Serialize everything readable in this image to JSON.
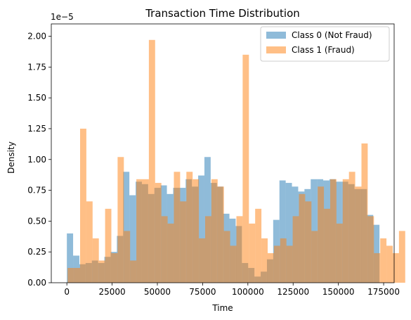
{
  "chart_data": {
    "type": "histogram",
    "title": "Transaction Time Distribution",
    "xlabel": "Time",
    "ylabel": "Density",
    "offset_text": "1e−5",
    "xlim": [
      -8600,
      180800
    ],
    "ylim": [
      0,
      2.1
    ],
    "y_scale": 1e-05,
    "bin_width": 3454,
    "x_ticks": [
      0,
      25000,
      50000,
      75000,
      100000,
      125000,
      150000,
      175000
    ],
    "y_ticks": [
      0.0,
      0.25,
      0.5,
      0.75,
      1.0,
      1.25,
      1.5,
      1.75,
      2.0
    ],
    "legend": {
      "placement": "top-right"
    },
    "grid": false,
    "series": [
      {
        "name": "Class 0 (Not Fraud)",
        "color": "#1f77b4",
        "alpha": 0.5,
        "bin_start": 0,
        "values": [
          0.4,
          0.22,
          0.15,
          0.16,
          0.18,
          0.16,
          0.21,
          0.25,
          0.38,
          0.9,
          0.71,
          0.82,
          0.8,
          0.72,
          0.77,
          0.79,
          0.72,
          0.77,
          0.77,
          0.84,
          0.78,
          0.87,
          1.02,
          0.81,
          0.78,
          0.56,
          0.52,
          0.46,
          0.16,
          0.12,
          0.05,
          0.09,
          0.19,
          0.51,
          0.83,
          0.81,
          0.78,
          0.74,
          0.76,
          0.84,
          0.84,
          0.83,
          0.84,
          0.82,
          0.82,
          0.8,
          0.76,
          0.76,
          0.55,
          0.47
        ]
      },
      {
        "name": "Class 1 (Fraud)",
        "color": "#ff7f0e",
        "alpha": 0.5,
        "bin_start": 406,
        "values": [
          0.12,
          0.12,
          1.25,
          0.66,
          0.36,
          0.18,
          0.6,
          0.24,
          1.02,
          0.42,
          0.18,
          0.84,
          0.84,
          1.97,
          0.81,
          0.54,
          0.48,
          0.9,
          0.66,
          0.9,
          0.84,
          0.36,
          0.54,
          0.84,
          0.78,
          0.42,
          0.3,
          0.54,
          1.85,
          0.48,
          0.6,
          0.36,
          0.24,
          0.3,
          0.36,
          0.3,
          0.54,
          0.72,
          0.66,
          0.42,
          0.78,
          0.6,
          0.84,
          0.48,
          0.84,
          0.9,
          0.78,
          1.13,
          0.54,
          0.24,
          0.36,
          0.3,
          0.24,
          0.42
        ]
      }
    ]
  }
}
